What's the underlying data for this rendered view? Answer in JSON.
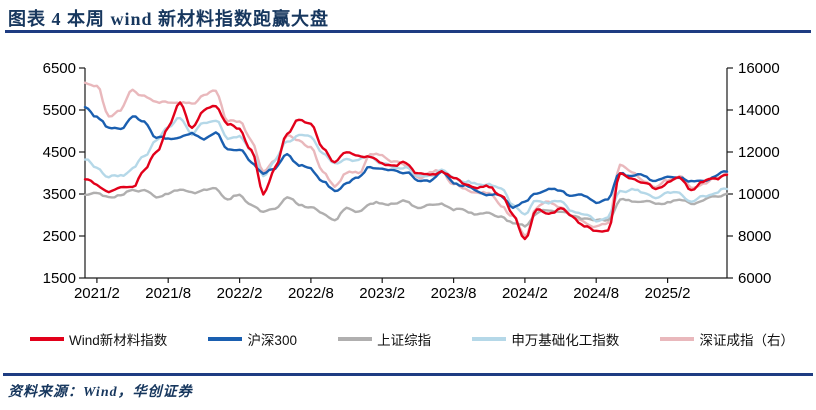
{
  "header": {
    "title": "图表 4  本周 wind 新材料指数跑赢大盘"
  },
  "footer": {
    "source": "资料来源：Wind，华创证券"
  },
  "colors": {
    "navy_text": "#17375e",
    "rule_blue": "#1e3c82",
    "axis": "#1a1a1a",
    "tick_label": "#000000"
  },
  "chart_data": {
    "type": "line",
    "grid": false,
    "legend_position": "bottom",
    "x_tick_labels": [
      "2021/2",
      "2021/8",
      "2022/2",
      "2022/8",
      "2023/2",
      "2023/8",
      "2024/2",
      "2024/8",
      "2025/2"
    ],
    "left_axis": {
      "min": 1500,
      "max": 6500,
      "ticks": [
        6500,
        5500,
        4500,
        3500,
        2500,
        1500
      ]
    },
    "right_axis": {
      "min": 6000,
      "max": 16000,
      "ticks": [
        16000,
        14000,
        12000,
        10000,
        8000,
        6000
      ]
    },
    "months": [
      "2021/1",
      "2021/2",
      "2021/3",
      "2021/4",
      "2021/5",
      "2021/6",
      "2021/7",
      "2021/8",
      "2021/9",
      "2021/10",
      "2021/11",
      "2021/12",
      "2022/1",
      "2022/2",
      "2022/3",
      "2022/4",
      "2022/5",
      "2022/6",
      "2022/7",
      "2022/8",
      "2022/9",
      "2022/10",
      "2022/11",
      "2022/12",
      "2023/1",
      "2023/2",
      "2023/3",
      "2023/4",
      "2023/5",
      "2023/6",
      "2023/7",
      "2023/8",
      "2023/9",
      "2023/10",
      "2023/11",
      "2023/12",
      "2024/1",
      "2024/2",
      "2024/3",
      "2024/4",
      "2024/5",
      "2024/6",
      "2024/7",
      "2024/8",
      "2024/9",
      "2024/10",
      "2024/11",
      "2024/12",
      "2025/1",
      "2025/2",
      "2025/3",
      "2025/4",
      "2025/5",
      "2025/6",
      "2025/7"
    ],
    "series": [
      {
        "name": "Wind新材料指数",
        "color": "#e2001a",
        "axis": "left",
        "values": [
          3850,
          3700,
          3580,
          3620,
          3680,
          4050,
          4500,
          5100,
          5650,
          5080,
          5480,
          5620,
          5150,
          5050,
          4550,
          3480,
          4150,
          4900,
          5300,
          5150,
          4600,
          4250,
          4480,
          4420,
          4350,
          4250,
          4150,
          4250,
          4000,
          3950,
          4050,
          3850,
          3750,
          3620,
          3680,
          3480,
          3000,
          2450,
          3100,
          3050,
          3150,
          2950,
          2750,
          2580,
          2650,
          3950,
          3880,
          3750,
          3620,
          3780,
          3880,
          3620,
          3780,
          3880,
          3960
        ]
      },
      {
        "name": "沪深300",
        "color": "#1a5fb0",
        "axis": "left",
        "values": [
          5570,
          5350,
          5050,
          5080,
          5330,
          5220,
          4850,
          4800,
          4870,
          4910,
          4830,
          4940,
          4560,
          4570,
          4220,
          4020,
          4090,
          4480,
          4170,
          4110,
          3800,
          3540,
          3780,
          3870,
          4180,
          4070,
          4050,
          4030,
          3800,
          3840,
          3990,
          3790,
          3690,
          3560,
          3500,
          3430,
          3215,
          3300,
          3540,
          3600,
          3580,
          3460,
          3440,
          3320,
          3350,
          4020,
          3920,
          3935,
          3820,
          3890,
          3915,
          3770,
          3840,
          3920,
          4030
        ]
      },
      {
        "name": "上证综指",
        "color": "#b0afaf",
        "axis": "left",
        "values": [
          3480,
          3510,
          3440,
          3450,
          3615,
          3590,
          3400,
          3545,
          3570,
          3550,
          3565,
          3640,
          3360,
          3460,
          3250,
          3047,
          3186,
          3400,
          3253,
          3202,
          3024,
          2893,
          3151,
          3089,
          3256,
          3280,
          3273,
          3323,
          3205,
          3202,
          3291,
          3120,
          3110,
          3019,
          3030,
          2975,
          2790,
          2760,
          3041,
          3105,
          3087,
          2967,
          2938,
          2842,
          2880,
          3340,
          3326,
          3352,
          3250,
          3320,
          3336,
          3280,
          3347,
          3444,
          3510
        ]
      },
      {
        "name": "申万基础化工指数",
        "color": "#b5d8e8",
        "axis": "left",
        "values": [
          4320,
          4150,
          3880,
          3950,
          4100,
          4400,
          4800,
          5050,
          5350,
          4900,
          5200,
          5250,
          4800,
          4900,
          4500,
          3950,
          4300,
          4750,
          4900,
          4850,
          4500,
          4200,
          4350,
          4300,
          4400,
          4250,
          4100,
          4150,
          3900,
          3950,
          4050,
          3900,
          3800,
          3700,
          3750,
          3600,
          3250,
          3000,
          3350,
          3300,
          3320,
          3120,
          3000,
          2880,
          2950,
          3550,
          3620,
          3500,
          3430,
          3500,
          3550,
          3300,
          3450,
          3530,
          3620
        ]
      },
      {
        "name": "深证成指（右）",
        "color": "#e9b8bc",
        "axis": "right",
        "values": [
          15300,
          15100,
          13700,
          14000,
          14900,
          14700,
          14300,
          14450,
          14300,
          14350,
          14700,
          14900,
          13500,
          13400,
          12600,
          11000,
          11600,
          12800,
          12500,
          12300,
          11000,
          10400,
          11000,
          11000,
          11900,
          11800,
          11600,
          11300,
          10800,
          11000,
          11100,
          10500,
          10200,
          10100,
          10000,
          9500,
          8900,
          8000,
          9400,
          9600,
          9400,
          8900,
          8700,
          8400,
          8600,
          11400,
          11000,
          10700,
          10300,
          10700,
          10800,
          10300,
          10500,
          10700,
          11000
        ]
      }
    ]
  }
}
